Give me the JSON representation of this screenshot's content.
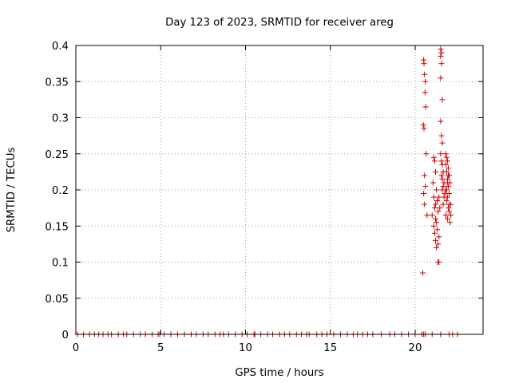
{
  "chart_data": {
    "type": "scatter",
    "title": "Day 123 of 2023, SRMTID for receiver areg",
    "xlabel": "GPS time / hours",
    "ylabel": "SRMTID / TECUs",
    "xlim": [
      0,
      24
    ],
    "ylim": [
      0,
      0.4
    ],
    "x_ticks": [
      0,
      5,
      10,
      15,
      20
    ],
    "x_tick_labels": [
      "0",
      "5",
      "10",
      "15",
      "20"
    ],
    "y_ticks": [
      0,
      0.05,
      0.1,
      0.15,
      0.2,
      0.25,
      0.3,
      0.35,
      0.4
    ],
    "y_tick_labels": [
      "0",
      "0.05",
      "0.1",
      "0.15",
      "0.2",
      "0.25",
      "0.3",
      "0.35",
      "0.4"
    ],
    "grid": true,
    "marker": "+",
    "color": "#cc0000",
    "series": [
      {
        "name": "SRMTID",
        "x": [
          0.1,
          0.45,
          0.8,
          1.1,
          1.35,
          1.6,
          1.9,
          2.1,
          2.5,
          2.8,
          3.0,
          3.4,
          3.8,
          4.1,
          4.5,
          4.85,
          4.95,
          5.2,
          5.6,
          6.0,
          6.4,
          6.8,
          7.1,
          7.5,
          7.8,
          8.2,
          8.5,
          8.7,
          9.0,
          9.4,
          9.8,
          10.1,
          10.5,
          10.55,
          10.9,
          11.3,
          11.6,
          12.0,
          12.3,
          12.6,
          13.0,
          13.3,
          13.6,
          13.75,
          14.2,
          14.5,
          14.8,
          15.2,
          15.6,
          16.0,
          16.35,
          16.6,
          16.9,
          17.2,
          17.5,
          18.0,
          18.5,
          18.8,
          19.2,
          19.6,
          20.0,
          20.4,
          20.5,
          20.6,
          21.0,
          21.5,
          22.0,
          22.2,
          22.5,
          20.45,
          20.5,
          20.52,
          20.55,
          20.6,
          20.62,
          20.58,
          20.48,
          20.52,
          20.65,
          20.55,
          20.6,
          20.5,
          20.55,
          20.7,
          21.1,
          21.15,
          21.2,
          21.05,
          21.25,
          21.1,
          21.3,
          21.2,
          21.15,
          21.35,
          21.0,
          21.2,
          21.25,
          21.1,
          21.3,
          21.15,
          21.4,
          21.2,
          21.35,
          21.25,
          21.3,
          21.4,
          21.45,
          21.35,
          21.4,
          21.5,
          21.55,
          21.5,
          21.55,
          21.5,
          21.6,
          21.5,
          21.55,
          21.6,
          21.5,
          21.55,
          21.6,
          21.65,
          21.55,
          21.6,
          21.7,
          21.65,
          21.6,
          21.75,
          21.7,
          21.65,
          21.8,
          21.85,
          21.9,
          21.8,
          21.95,
          21.85,
          22.0,
          21.9,
          22.05,
          21.95,
          21.8,
          22.0,
          21.9,
          21.85,
          22.1,
          21.95,
          22.0,
          21.8,
          21.9,
          22.05,
          21.85,
          22.1,
          21.95,
          22.0,
          21.9
        ],
        "y": [
          0,
          0,
          0,
          0,
          0,
          0,
          0,
          0,
          0,
          0,
          0,
          0,
          0,
          0,
          0,
          0,
          0,
          0,
          0,
          0,
          0,
          0,
          0,
          0,
          0,
          0,
          0,
          0,
          0,
          0,
          0,
          0,
          0,
          0,
          0,
          0,
          0,
          0,
          0,
          0,
          0,
          0,
          0,
          0,
          0,
          0,
          0,
          0,
          0,
          0,
          0,
          0,
          0,
          0,
          0,
          0,
          0,
          0,
          0,
          0,
          0,
          0,
          0,
          0,
          0,
          0,
          0,
          0,
          0,
          0.085,
          0.38,
          0.375,
          0.36,
          0.35,
          0.315,
          0.335,
          0.29,
          0.285,
          0.25,
          0.22,
          0.205,
          0.195,
          0.18,
          0.165,
          0.245,
          0.24,
          0.225,
          0.21,
          0.2,
          0.19,
          0.185,
          0.18,
          0.175,
          0.17,
          0.165,
          0.16,
          0.155,
          0.15,
          0.145,
          0.14,
          0.135,
          0.13,
          0.125,
          0.12,
          0.185,
          0.19,
          0.175,
          0.1,
          0.1,
          0.395,
          0.39,
          0.385,
          0.375,
          0.355,
          0.325,
          0.295,
          0.275,
          0.265,
          0.25,
          0.24,
          0.235,
          0.225,
          0.22,
          0.215,
          0.21,
          0.205,
          0.2,
          0.195,
          0.19,
          0.18,
          0.25,
          0.245,
          0.24,
          0.235,
          0.23,
          0.225,
          0.22,
          0.215,
          0.21,
          0.205,
          0.2,
          0.195,
          0.19,
          0.185,
          0.18,
          0.175,
          0.17,
          0.165,
          0.16,
          0.155,
          0.2,
          0.165,
          0.22,
          0.18,
          0.21
        ]
      }
    ]
  }
}
